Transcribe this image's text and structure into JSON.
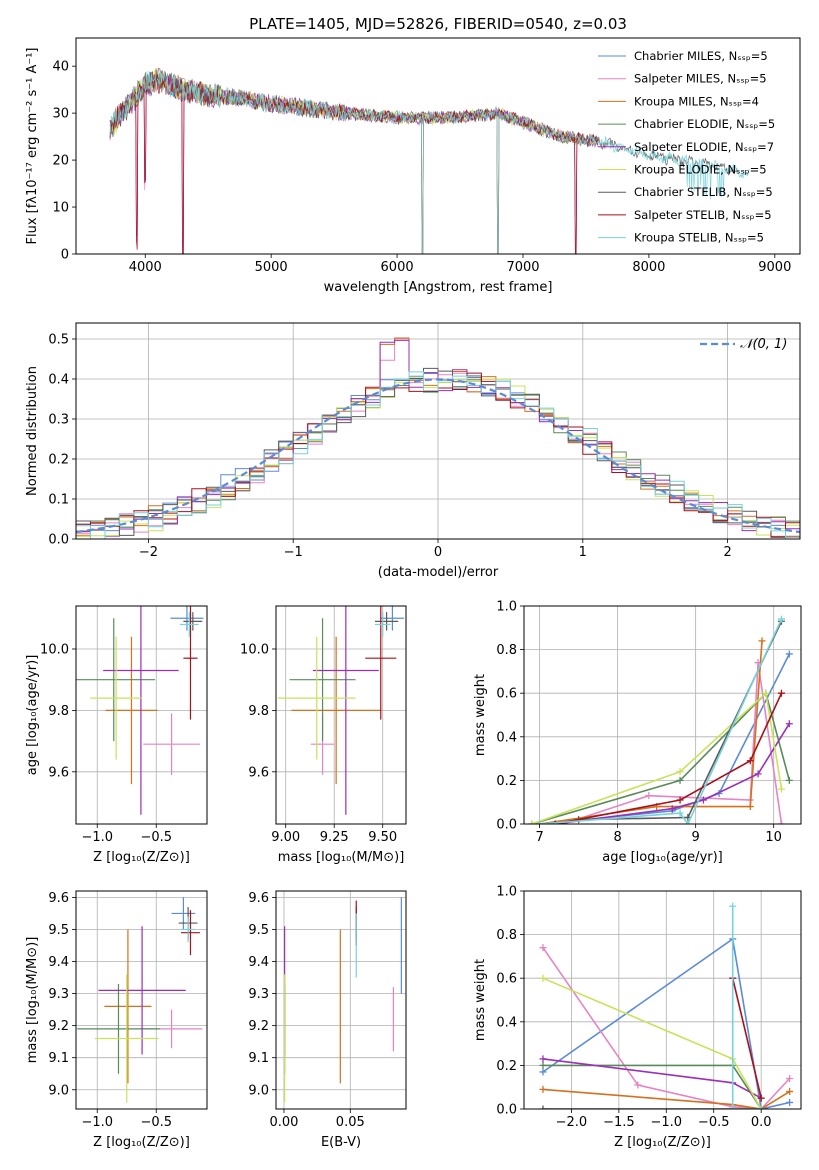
{
  "colors": {
    "chabrier_miles": "#5b8bd6",
    "salpeter_miles": "#e584c4",
    "kroupa_miles": "#d4711e",
    "chabrier_elodie": "#5a8a5a",
    "salpeter_elodie": "#9b2fb8",
    "kroupa_elodie": "#c8e25a",
    "chabrier_stelib": "#5a5a5a",
    "salpeter_stelib": "#a8101a",
    "kroupa_stelib": "#76d2dc",
    "normal_curve": "#5b8bd6",
    "grid": "#b0b0b0"
  },
  "chart_data": [
    {
      "id": "spectrum",
      "type": "line",
      "title": "PLATE=1405, MJD=52826, FIBERID=0540, z=0.03",
      "xlabel": "wavelength [Angstrom, rest frame]",
      "ylabel": "Flux [fλ10⁻¹⁷ erg cm⁻² s⁻¹ A⁻¹]",
      "xlim": [
        3450,
        9200
      ],
      "ylim": [
        0,
        46
      ],
      "xticks": [
        4000,
        5000,
        6000,
        7000,
        8000,
        9000
      ],
      "yticks": [
        0,
        10,
        20,
        30,
        40
      ],
      "grid": false,
      "legend_position": "top-right",
      "legend": [
        "Chabrier MILES, Nₛₛₚ=5",
        "Salpeter MILES, Nₛₛₚ=5",
        "Kroupa MILES, Nₛₛₚ=4",
        "Chabrier ELODIE, Nₛₛₚ=5",
        "Salpeter ELODIE, Nₛₛₚ=7",
        "Kroupa ELODIE, Nₛₛₚ=5",
        "Chabrier STELIB, Nₛₛₚ=5",
        "Salpeter STELIB, Nₛₛₚ=5",
        "Kroupa STELIB, Nₛₛₚ=5"
      ],
      "continuum": {
        "x": [
          3720,
          3850,
          4000,
          4100,
          4300,
          4500,
          4800,
          5000,
          5300,
          5600,
          6000,
          6400,
          6800,
          7000,
          7300,
          7600,
          8000,
          8500,
          8800
        ],
        "y": [
          27,
          31,
          36,
          37,
          35,
          34,
          33,
          32,
          31,
          30,
          29,
          29,
          30,
          28,
          25,
          24,
          21,
          19,
          17
        ]
      },
      "absorption_features": [
        {
          "x": 3934,
          "depth": 31
        },
        {
          "x": 4000,
          "depth": 20
        },
        {
          "x": 4300,
          "depth": 35
        },
        {
          "x": 6200,
          "depth": 30
        },
        {
          "x": 6800,
          "depth": 31
        },
        {
          "x": 7420,
          "depth": 26
        }
      ]
    },
    {
      "id": "residual_histogram",
      "type": "line",
      "xlabel": "(data-model)/error",
      "ylabel": "Normed distribution",
      "xlim": [
        -2.5,
        2.5
      ],
      "ylim": [
        0,
        0.54
      ],
      "xticks": [
        -2,
        -1,
        0,
        1,
        2
      ],
      "yticks": [
        0.0,
        0.1,
        0.2,
        0.3,
        0.4,
        0.5
      ],
      "grid": true,
      "legend_position": "top-right",
      "legend": [
        "𝒩(0, 1)"
      ],
      "bin_width": 0.1,
      "series": [
        {
          "name": "Chabrier MILES",
          "color": "chabrier_miles",
          "shift": 0.02
        },
        {
          "name": "Salpeter MILES",
          "color": "salpeter_miles",
          "shift": -0.02
        },
        {
          "name": "Kroupa MILES",
          "color": "kroupa_miles",
          "shift": 0.03
        },
        {
          "name": "Chabrier ELODIE",
          "color": "chabrier_elodie",
          "shift": -0.01
        },
        {
          "name": "Salpeter ELODIE",
          "color": "salpeter_elodie",
          "shift": 0.01
        },
        {
          "name": "Kroupa ELODIE",
          "color": "kroupa_elodie",
          "shift": -0.03
        },
        {
          "name": "Chabrier STELIB",
          "color": "chabrier_stelib",
          "shift": 0.0
        },
        {
          "name": "Salpeter STELIB",
          "color": "salpeter_stelib",
          "shift": 0.02
        },
        {
          "name": "Kroupa STELIB",
          "color": "kroupa_stelib",
          "shift": -0.02
        }
      ]
    },
    {
      "id": "age_vs_Z",
      "type": "scatter",
      "xlabel": "Z [log₁₀(Z/Z⊙)]",
      "ylabel": "age  [log₁₀(age/yr)]",
      "xlim": [
        -1.18,
        -0.07
      ],
      "ylim": [
        9.43,
        10.14
      ],
      "xticks": [
        -1.0,
        -0.5
      ],
      "xtick_labels": [
        "−1.0",
        "−0.5"
      ],
      "yticks": [
        9.6,
        9.8,
        10.0
      ],
      "yticklabels": [
        "9.6",
        "9.8",
        "10.0"
      ],
      "grid": true,
      "points": [
        {
          "color": "chabrier_miles",
          "x": -0.24,
          "xerr": 0.14,
          "y": 10.1,
          "yerr": 0.04
        },
        {
          "color": "salpeter_miles",
          "x": -0.37,
          "xerr": 0.24,
          "y": 9.69,
          "yerr": 0.1
        },
        {
          "color": "kroupa_miles",
          "x": -0.71,
          "xerr": 0.22,
          "y": 9.8,
          "yerr": 0.24
        },
        {
          "color": "chabrier_elodie",
          "x": -0.86,
          "xerr": 0.35,
          "y": 9.9,
          "yerr": 0.2
        },
        {
          "color": "salpeter_elodie",
          "x": -0.63,
          "xerr": 0.32,
          "y": 9.93,
          "yerr": 0.47
        },
        {
          "color": "kroupa_elodie",
          "x": -0.84,
          "xerr": 0.22,
          "y": 9.84,
          "yerr": 0.2
        },
        {
          "color": "chabrier_stelib",
          "x": -0.19,
          "xerr": 0.08,
          "y": 10.09,
          "yerr": 0.03
        },
        {
          "color": "salpeter_stelib",
          "x": -0.21,
          "xerr": 0.06,
          "y": 9.97,
          "yerr": 0.2
        },
        {
          "color": "kroupa_stelib",
          "x": -0.22,
          "xerr": 0.08,
          "y": 10.08,
          "yerr": 0.04
        }
      ]
    },
    {
      "id": "age_vs_mass",
      "type": "scatter",
      "xlabel": "mass [log₁₀(M/M⊙)]",
      "ylabel": "",
      "xlim": [
        8.95,
        9.62
      ],
      "ylim": [
        9.43,
        10.14
      ],
      "xticks": [
        9.0,
        9.25,
        9.5
      ],
      "xtick_labels": [
        "9.00",
        "9.25",
        "9.50"
      ],
      "yticks": [
        9.6,
        9.8,
        10.0
      ],
      "yticklabels": [
        "9.6",
        "9.8",
        "10.0"
      ],
      "grid": true,
      "points": [
        {
          "color": "chabrier_miles",
          "x": 9.55,
          "xerr": 0.06,
          "y": 10.1,
          "yerr": 0.04
        },
        {
          "color": "salpeter_miles",
          "x": 9.19,
          "xerr": 0.06,
          "y": 9.69,
          "yerr": 0.1
        },
        {
          "color": "kroupa_miles",
          "x": 9.26,
          "xerr": 0.23,
          "y": 9.8,
          "yerr": 0.24
        },
        {
          "color": "chabrier_elodie",
          "x": 9.19,
          "xerr": 0.17,
          "y": 9.9,
          "yerr": 0.2
        },
        {
          "color": "salpeter_elodie",
          "x": 9.31,
          "xerr": 0.17,
          "y": 9.93,
          "yerr": 0.47
        },
        {
          "color": "kroupa_elodie",
          "x": 9.16,
          "xerr": 0.2,
          "y": 9.84,
          "yerr": 0.2
        },
        {
          "color": "chabrier_stelib",
          "x": 9.52,
          "xerr": 0.06,
          "y": 10.09,
          "yerr": 0.03
        },
        {
          "color": "salpeter_stelib",
          "x": 9.49,
          "xerr": 0.08,
          "y": 9.97,
          "yerr": 0.2
        },
        {
          "color": "kroupa_stelib",
          "x": 9.5,
          "xerr": 0.04,
          "y": 10.08,
          "yerr": 0.04
        }
      ]
    },
    {
      "id": "weight_vs_age",
      "type": "line",
      "xlabel": "age  [log₁₀(age/yr)]",
      "ylabel": "mass weight",
      "xlim": [
        6.8,
        10.35
      ],
      "ylim": [
        0,
        1
      ],
      "xticks": [
        7,
        8,
        9,
        10
      ],
      "yticks": [
        0.0,
        0.2,
        0.4,
        0.6,
        0.8,
        1.0
      ],
      "grid": true,
      "series": [
        {
          "color": "chabrier_miles",
          "x": [
            7.0,
            8.7,
            9.3,
            10.2
          ],
          "y": [
            0.0,
            0.06,
            0.14,
            0.78
          ]
        },
        {
          "color": "salpeter_miles",
          "x": [
            7.3,
            8.4,
            9.7,
            9.8,
            10.1
          ],
          "y": [
            0.0,
            0.13,
            0.11,
            0.74,
            0.0
          ]
        },
        {
          "color": "kroupa_miles",
          "x": [
            7.0,
            8.5,
            9.7,
            9.85
          ],
          "y": [
            0.0,
            0.08,
            0.08,
            0.84
          ]
        },
        {
          "color": "chabrier_elodie",
          "x": [
            6.9,
            8.8,
            9.9,
            10.2
          ],
          "y": [
            0.0,
            0.2,
            0.6,
            0.2
          ]
        },
        {
          "color": "salpeter_elodie",
          "x": [
            7.2,
            8.7,
            9.1,
            9.8,
            10.2
          ],
          "y": [
            0.0,
            0.07,
            0.11,
            0.23,
            0.46
          ]
        },
        {
          "color": "kroupa_elodie",
          "x": [
            6.9,
            8.8,
            9.9,
            10.1
          ],
          "y": [
            0.0,
            0.24,
            0.6,
            0.16
          ]
        },
        {
          "color": "chabrier_stelib",
          "x": [
            7.5,
            8.9,
            10.1
          ],
          "y": [
            0.02,
            0.03,
            0.93
          ]
        },
        {
          "color": "salpeter_stelib",
          "x": [
            7.2,
            8.8,
            9.7,
            10.1
          ],
          "y": [
            0.0,
            0.11,
            0.29,
            0.6
          ]
        },
        {
          "color": "kroupa_stelib",
          "x": [
            7.0,
            8.8,
            8.9,
            10.1
          ],
          "y": [
            0.0,
            0.05,
            0.0,
            0.94
          ]
        }
      ]
    },
    {
      "id": "mass_vs_Z",
      "type": "scatter",
      "xlabel": "Z [log₁₀(Z/Z⊙)]",
      "ylabel": "mass [log₁₀(M/M⊙)]",
      "xlim": [
        -1.18,
        -0.07
      ],
      "ylim": [
        8.94,
        9.62
      ],
      "xticks": [
        -1.0,
        -0.5
      ],
      "xtick_labels": [
        "−1.0",
        "−0.5"
      ],
      "yticks": [
        9.0,
        9.1,
        9.2,
        9.3,
        9.4,
        9.5,
        9.6
      ],
      "yticklabels": [
        "9.0",
        "9.1",
        "9.2",
        "9.3",
        "9.4",
        "9.5",
        "9.6"
      ],
      "grid": true,
      "points": [
        {
          "color": "chabrier_miles",
          "x": -0.27,
          "xerr": 0.1,
          "y": 9.55,
          "yerr": 0.05
        },
        {
          "color": "salpeter_miles",
          "x": -0.37,
          "xerr": 0.26,
          "y": 9.19,
          "yerr": 0.06
        },
        {
          "color": "kroupa_miles",
          "x": -0.74,
          "xerr": 0.2,
          "y": 9.26,
          "yerr": 0.24
        },
        {
          "color": "chabrier_elodie",
          "x": -0.82,
          "xerr": 0.35,
          "y": 9.19,
          "yerr": 0.14
        },
        {
          "color": "salpeter_elodie",
          "x": -0.62,
          "xerr": 0.37,
          "y": 9.31,
          "yerr": 0.2
        },
        {
          "color": "kroupa_elodie",
          "x": -0.75,
          "xerr": 0.27,
          "y": 9.16,
          "yerr": 0.2
        },
        {
          "color": "chabrier_stelib",
          "x": -0.23,
          "xerr": 0.08,
          "y": 9.52,
          "yerr": 0.05
        },
        {
          "color": "salpeter_stelib",
          "x": -0.21,
          "xerr": 0.08,
          "y": 9.49,
          "yerr": 0.07
        },
        {
          "color": "kroupa_stelib",
          "x": -0.23,
          "xerr": 0.06,
          "y": 9.5,
          "yerr": 0.04
        }
      ]
    },
    {
      "id": "mass_vs_ebv",
      "type": "scatter",
      "xlabel": "E(B-V)",
      "ylabel": "",
      "xlim": [
        -0.006,
        0.092
      ],
      "ylim": [
        8.94,
        9.62
      ],
      "xticks": [
        0.0,
        0.05
      ],
      "xtick_labels": [
        "0.00",
        "0.05"
      ],
      "yticks": [
        9.0,
        9.1,
        9.2,
        9.3,
        9.4,
        9.5,
        9.6
      ],
      "yticklabels": [
        "9.0",
        "9.1",
        "9.2",
        "9.3",
        "9.4",
        "9.5",
        "9.6"
      ],
      "grid": true,
      "points": [
        {
          "color": "chabrier_miles",
          "x": 0.0885,
          "xerr": 0,
          "y": 9.45,
          "yerr": 0.15
        },
        {
          "color": "salpeter_miles",
          "x": 0.0825,
          "xerr": 0,
          "y": 9.22,
          "yerr": 0.1
        },
        {
          "color": "kroupa_miles",
          "x": 0.0425,
          "xerr": 0,
          "y": 9.26,
          "yerr": 0.24
        },
        {
          "color": "chabrier_elodie",
          "x": 0.0005,
          "xerr": 0,
          "y": 9.19,
          "yerr": 0.14
        },
        {
          "color": "salpeter_elodie",
          "x": 0.0005,
          "xerr": 0,
          "y": 9.31,
          "yerr": 0.2
        },
        {
          "color": "kroupa_elodie",
          "x": 0.0005,
          "xerr": 0,
          "y": 9.16,
          "yerr": 0.2
        },
        {
          "color": "chabrier_stelib",
          "x": 0.0545,
          "xerr": 0,
          "y": 9.52,
          "yerr": 0.05
        },
        {
          "color": "salpeter_stelib",
          "x": 0.0545,
          "xerr": 0,
          "y": 9.52,
          "yerr": 0.07
        },
        {
          "color": "kroupa_stelib",
          "x": 0.0545,
          "xerr": 0,
          "y": 9.45,
          "yerr": 0.1
        }
      ]
    },
    {
      "id": "weight_vs_Z",
      "type": "line",
      "xlabel": "Z [log₁₀(Z/Z⊙)]",
      "ylabel": "mass weight",
      "xlim": [
        -2.5,
        0.42
      ],
      "ylim": [
        0,
        1
      ],
      "xticks": [
        -2.0,
        -1.5,
        -1.0,
        -0.5,
        0.0
      ],
      "xtick_labels": [
        "−2.0",
        "−1.5",
        "−1.0",
        "−0.5",
        "0.0"
      ],
      "yticks": [
        0.0,
        0.2,
        0.4,
        0.6,
        0.8,
        1.0
      ],
      "grid": true,
      "series": [
        {
          "color": "chabrier_miles",
          "x": [
            -2.3,
            -0.3,
            0.0,
            0.3
          ],
          "y": [
            0.17,
            0.78,
            0.0,
            0.03
          ]
        },
        {
          "color": "salpeter_miles",
          "x": [
            -2.3,
            -1.3,
            -0.3,
            0.0,
            0.3
          ],
          "y": [
            0.74,
            0.11,
            0.01,
            0.0,
            0.14
          ]
        },
        {
          "color": "kroupa_miles",
          "x": [
            -2.3,
            -0.3,
            0.0,
            0.3
          ],
          "y": [
            0.09,
            0.02,
            0.0,
            0.08
          ]
        },
        {
          "color": "chabrier_elodie",
          "x": [
            -2.3,
            -0.3,
            0.0
          ],
          "y": [
            0.2,
            0.2,
            0.0
          ]
        },
        {
          "color": "salpeter_elodie",
          "x": [
            -2.3,
            -0.3,
            0.0
          ],
          "y": [
            0.23,
            0.12,
            0.05
          ]
        },
        {
          "color": "kroupa_elodie",
          "x": [
            -2.3,
            -0.3,
            0.0
          ],
          "y": [
            0.6,
            0.23,
            0.0
          ]
        },
        {
          "color": "chabrier_stelib",
          "x": [
            -2.3,
            -0.3,
            0.0
          ],
          "y": [
            0.0,
            0.0,
            0.0
          ]
        },
        {
          "color": "salpeter_stelib",
          "x": [
            -0.3,
            0.0
          ],
          "y": [
            0.6,
            0.05
          ]
        },
        {
          "color": "kroupa_stelib",
          "x": [
            -0.3,
            -0.3,
            0.0
          ],
          "y": [
            0.93,
            0.0,
            0.0
          ]
        }
      ]
    }
  ]
}
